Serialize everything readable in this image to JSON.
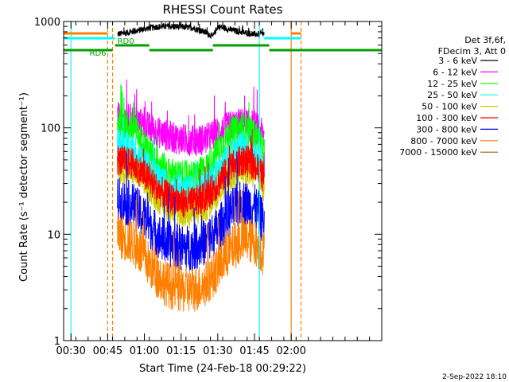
{
  "chart_data": {
    "type": "line",
    "title": "RHESSI Count Rates",
    "xlabel": "Start Time (24-Feb-18 00:29:22)",
    "ylabel": "Count Rate (s⁻¹ detector segment⁻¹)",
    "yscale": "log",
    "ylim": [
      1,
      1000
    ],
    "xlim": [
      "00:27",
      "02:37"
    ],
    "x_ticks": [
      "00:30",
      "00:45",
      "01:00",
      "01:15",
      "01:30",
      "01:45",
      "02:00"
    ],
    "y_ticks": [
      "1",
      "10",
      "100",
      "1000"
    ],
    "grid": false,
    "legend_position": "right",
    "legend_header": [
      "Det 3f,6f,",
      "FDecim 3, Att 0"
    ],
    "series": [
      {
        "name": "3 - 6 keV",
        "color": "#000000",
        "x": [
          "00:49",
          "00:55",
          "01:00",
          "01:05",
          "01:10",
          "01:15",
          "01:20",
          "01:25",
          "01:28",
          "01:30",
          "01:35",
          "01:40",
          "01:45",
          "01:49"
        ],
        "y": [
          760,
          800,
          850,
          890,
          900,
          890,
          870,
          790,
          720,
          900,
          840,
          790,
          760,
          760
        ]
      },
      {
        "name": "6 - 12 keV",
        "color": "#ff00ff",
        "x": [
          "00:49",
          "00:55",
          "01:00",
          "01:05",
          "01:10",
          "01:15",
          "01:20",
          "01:25",
          "01:30",
          "01:35",
          "01:40",
          "01:45",
          "01:49"
        ],
        "y": [
          125,
          120,
          105,
          92,
          83,
          78,
          76,
          78,
          90,
          103,
          110,
          105,
          82
        ]
      },
      {
        "name": "12 - 25 keV",
        "color": "#00ff00",
        "x": [
          "00:49",
          "00:55",
          "01:00",
          "01:05",
          "01:10",
          "01:15",
          "01:20",
          "01:25",
          "01:30",
          "01:35",
          "01:40",
          "01:45",
          "01:49"
        ],
        "y": [
          115,
          100,
          70,
          48,
          38,
          35,
          35,
          40,
          62,
          88,
          102,
          88,
          60
        ]
      },
      {
        "name": "25 - 50 keV",
        "color": "#00ffff",
        "x": [
          "00:49",
          "00:55",
          "01:00",
          "01:05",
          "01:10",
          "01:15",
          "01:20",
          "01:25",
          "01:30",
          "01:35",
          "01:40",
          "01:45",
          "01:49"
        ],
        "y": [
          70,
          65,
          48,
          35,
          28,
          26,
          26,
          29,
          40,
          55,
          66,
          60,
          42
        ]
      },
      {
        "name": "50 - 100 keV",
        "color": "#cccc00",
        "x": [
          "00:49",
          "00:55",
          "01:00",
          "01:05",
          "01:10",
          "01:15",
          "01:20",
          "01:25",
          "01:30",
          "01:35",
          "01:40",
          "01:45",
          "01:49"
        ],
        "y": [
          42,
          40,
          32,
          23,
          18,
          16,
          16,
          18,
          25,
          35,
          42,
          38,
          28
        ]
      },
      {
        "name": "100 - 300 keV",
        "color": "#ff0000",
        "x": [
          "00:49",
          "00:55",
          "01:00",
          "01:05",
          "01:10",
          "01:15",
          "01:20",
          "01:25",
          "01:30",
          "01:35",
          "01:40",
          "01:45",
          "01:49"
        ],
        "y": [
          50,
          46,
          36,
          27,
          22,
          20,
          20,
          22,
          30,
          42,
          50,
          45,
          33
        ]
      },
      {
        "name": "300 - 800 keV",
        "color": "#0000ff",
        "x": [
          "00:49",
          "00:55",
          "01:00",
          "01:05",
          "01:10",
          "01:15",
          "01:20",
          "01:25",
          "01:30",
          "01:35",
          "01:40",
          "01:45",
          "01:49"
        ],
        "y": [
          21,
          19,
          14,
          10,
          8,
          7.5,
          7.5,
          8.5,
          11,
          16,
          20,
          18,
          13
        ]
      },
      {
        "name": "800 - 7000 keV",
        "color": "#ff8000",
        "x": [
          "00:49",
          "00:55",
          "01:00",
          "01:05",
          "01:10",
          "01:15",
          "01:20",
          "01:25",
          "01:30",
          "01:35",
          "01:40",
          "01:45",
          "01:49"
        ],
        "y": [
          10,
          8.5,
          6,
          4.2,
          3.3,
          3.0,
          3.0,
          3.4,
          4.8,
          7,
          9,
          8.5,
          6.5
        ]
      },
      {
        "name": "7000 - 15000 keV",
        "color": "#996600",
        "x": [],
        "y": []
      }
    ],
    "attenuator_bars": [
      {
        "label": "RD0",
        "color": "#00a000",
        "segments": [
          [
            "00:48",
            "01:02"
          ],
          [
            "01:28",
            "01:51"
          ]
        ]
      },
      {
        "label": "RD6",
        "color": "#00a000",
        "segments": [
          [
            "00:27",
            "00:47"
          ],
          [
            "01:02",
            "01:28"
          ],
          [
            "01:51",
            "02:37"
          ]
        ]
      }
    ],
    "orange_flag_segments": [
      [
        "00:27",
        "00:45"
      ],
      [
        "02:00",
        "02:04"
      ]
    ],
    "cyan_flag_segments": [
      [
        "00:27",
        "00:48"
      ],
      [
        "01:49",
        "02:04"
      ]
    ],
    "vlines": [
      {
        "x": "00:30",
        "color": "#00ffff",
        "style": "solid"
      },
      {
        "x": "00:45",
        "color": "#ff8000",
        "style": "dashed"
      },
      {
        "x": "00:47",
        "color": "#ff8000",
        "style": "dashed"
      },
      {
        "x": "01:47",
        "color": "#00ffff",
        "style": "solid"
      },
      {
        "x": "02:00",
        "color": "#ff8000",
        "style": "solid"
      },
      {
        "x": "02:04",
        "color": "#ff8000",
        "style": "dashed"
      }
    ]
  },
  "footer_timestamp": "2-Sep-2022 18:10"
}
